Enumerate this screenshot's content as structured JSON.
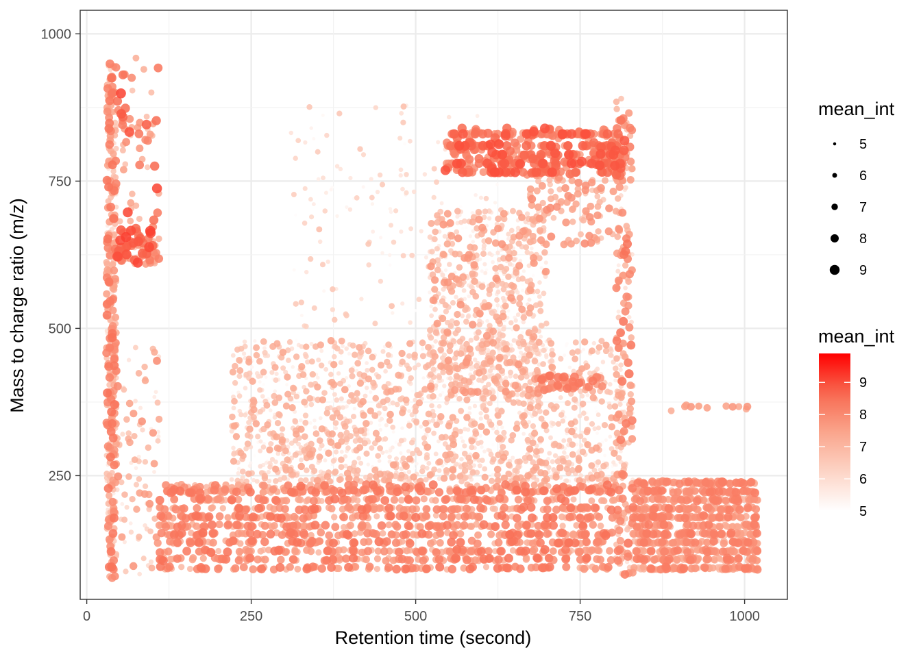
{
  "chart_data": {
    "type": "scatter",
    "title": "",
    "xlabel": "Retention time (second)",
    "ylabel": "Mass to charge ratio (m/z)",
    "xlim": [
      -10,
      1065
    ],
    "ylim": [
      40,
      1040
    ],
    "x_ticks": [
      0,
      250,
      500,
      750,
      1000
    ],
    "y_ticks": [
      250,
      500,
      750,
      1000
    ],
    "x_tick_labels": [
      "0",
      "250",
      "500",
      "750",
      "1000"
    ],
    "y_tick_labels": [
      "250",
      "500",
      "750",
      "1000"
    ],
    "grid": true,
    "theme": "bw",
    "legend_position": "right",
    "size_legend": {
      "title": "mean_int",
      "values": [
        5,
        6,
        7,
        8,
        9
      ],
      "labels": [
        "5",
        "6",
        "7",
        "8",
        "9"
      ]
    },
    "color_legend": {
      "title": "mean_int",
      "min": 5,
      "max": 9.9,
      "breaks": [
        9,
        8,
        7,
        6,
        5
      ],
      "labels": [
        "9",
        "8",
        "7",
        "6",
        "5"
      ],
      "low_color": "#ffffff",
      "high_color": "#ff0000"
    },
    "color_encoding": "mean_int",
    "size_encoding": "mean_int",
    "point_count_estimate": 6000,
    "clusters": [
      {
        "x_range": [
          30,
          45
        ],
        "y_range": [
          75,
          950
        ],
        "mean_int": [
          5.5,
          8.5
        ],
        "count": 420
      },
      {
        "x_range": [
          45,
          110
        ],
        "y_range": [
          600,
          960
        ],
        "mean_int": [
          6.5,
          9.2
        ],
        "count": 130
      },
      {
        "x_range": [
          45,
          110
        ],
        "y_range": [
          80,
          480
        ],
        "mean_int": [
          5.5,
          8
        ],
        "count": 90
      },
      {
        "x_range": [
          110,
          815
        ],
        "y_range": [
          90,
          235
        ],
        "mean_int": [
          6.8,
          8.5
        ],
        "count": 1300
      },
      {
        "x_range": [
          220,
          820
        ],
        "y_range": [
          240,
          480
        ],
        "mean_int": [
          5,
          7.5
        ],
        "count": 1700
      },
      {
        "x_range": [
          520,
          700
        ],
        "y_range": [
          380,
          700
        ],
        "mean_int": [
          5,
          7.8
        ],
        "count": 750
      },
      {
        "x_range": [
          310,
          640
        ],
        "y_range": [
          500,
          880
        ],
        "mean_int": [
          5,
          6.8
        ],
        "count": 160
      },
      {
        "x_range": [
          545,
          820
        ],
        "y_range": [
          760,
          840
        ],
        "mean_int": [
          7.5,
          9
        ],
        "count": 360
      },
      {
        "x_range": [
          670,
          810
        ],
        "y_range": [
          640,
          760
        ],
        "mean_int": [
          6.5,
          8
        ],
        "count": 110
      },
      {
        "x_range": [
          680,
          790
        ],
        "y_range": [
          395,
          420
        ],
        "mean_int": [
          7.5,
          8.5
        ],
        "count": 40
      },
      {
        "x_range": [
          805,
          830
        ],
        "y_range": [
          80,
          890
        ],
        "mean_int": [
          5.5,
          8.5
        ],
        "count": 200
      },
      {
        "x_range": [
          830,
          1020
        ],
        "y_range": [
          90,
          270
        ],
        "mean_int": [
          6.5,
          8.3
        ],
        "count": 900
      },
      {
        "x_range": [
          870,
          1020
        ],
        "y_range": [
          360,
          370
        ],
        "mean_int": [
          7,
          7.8
        ],
        "count": 12
      }
    ]
  }
}
